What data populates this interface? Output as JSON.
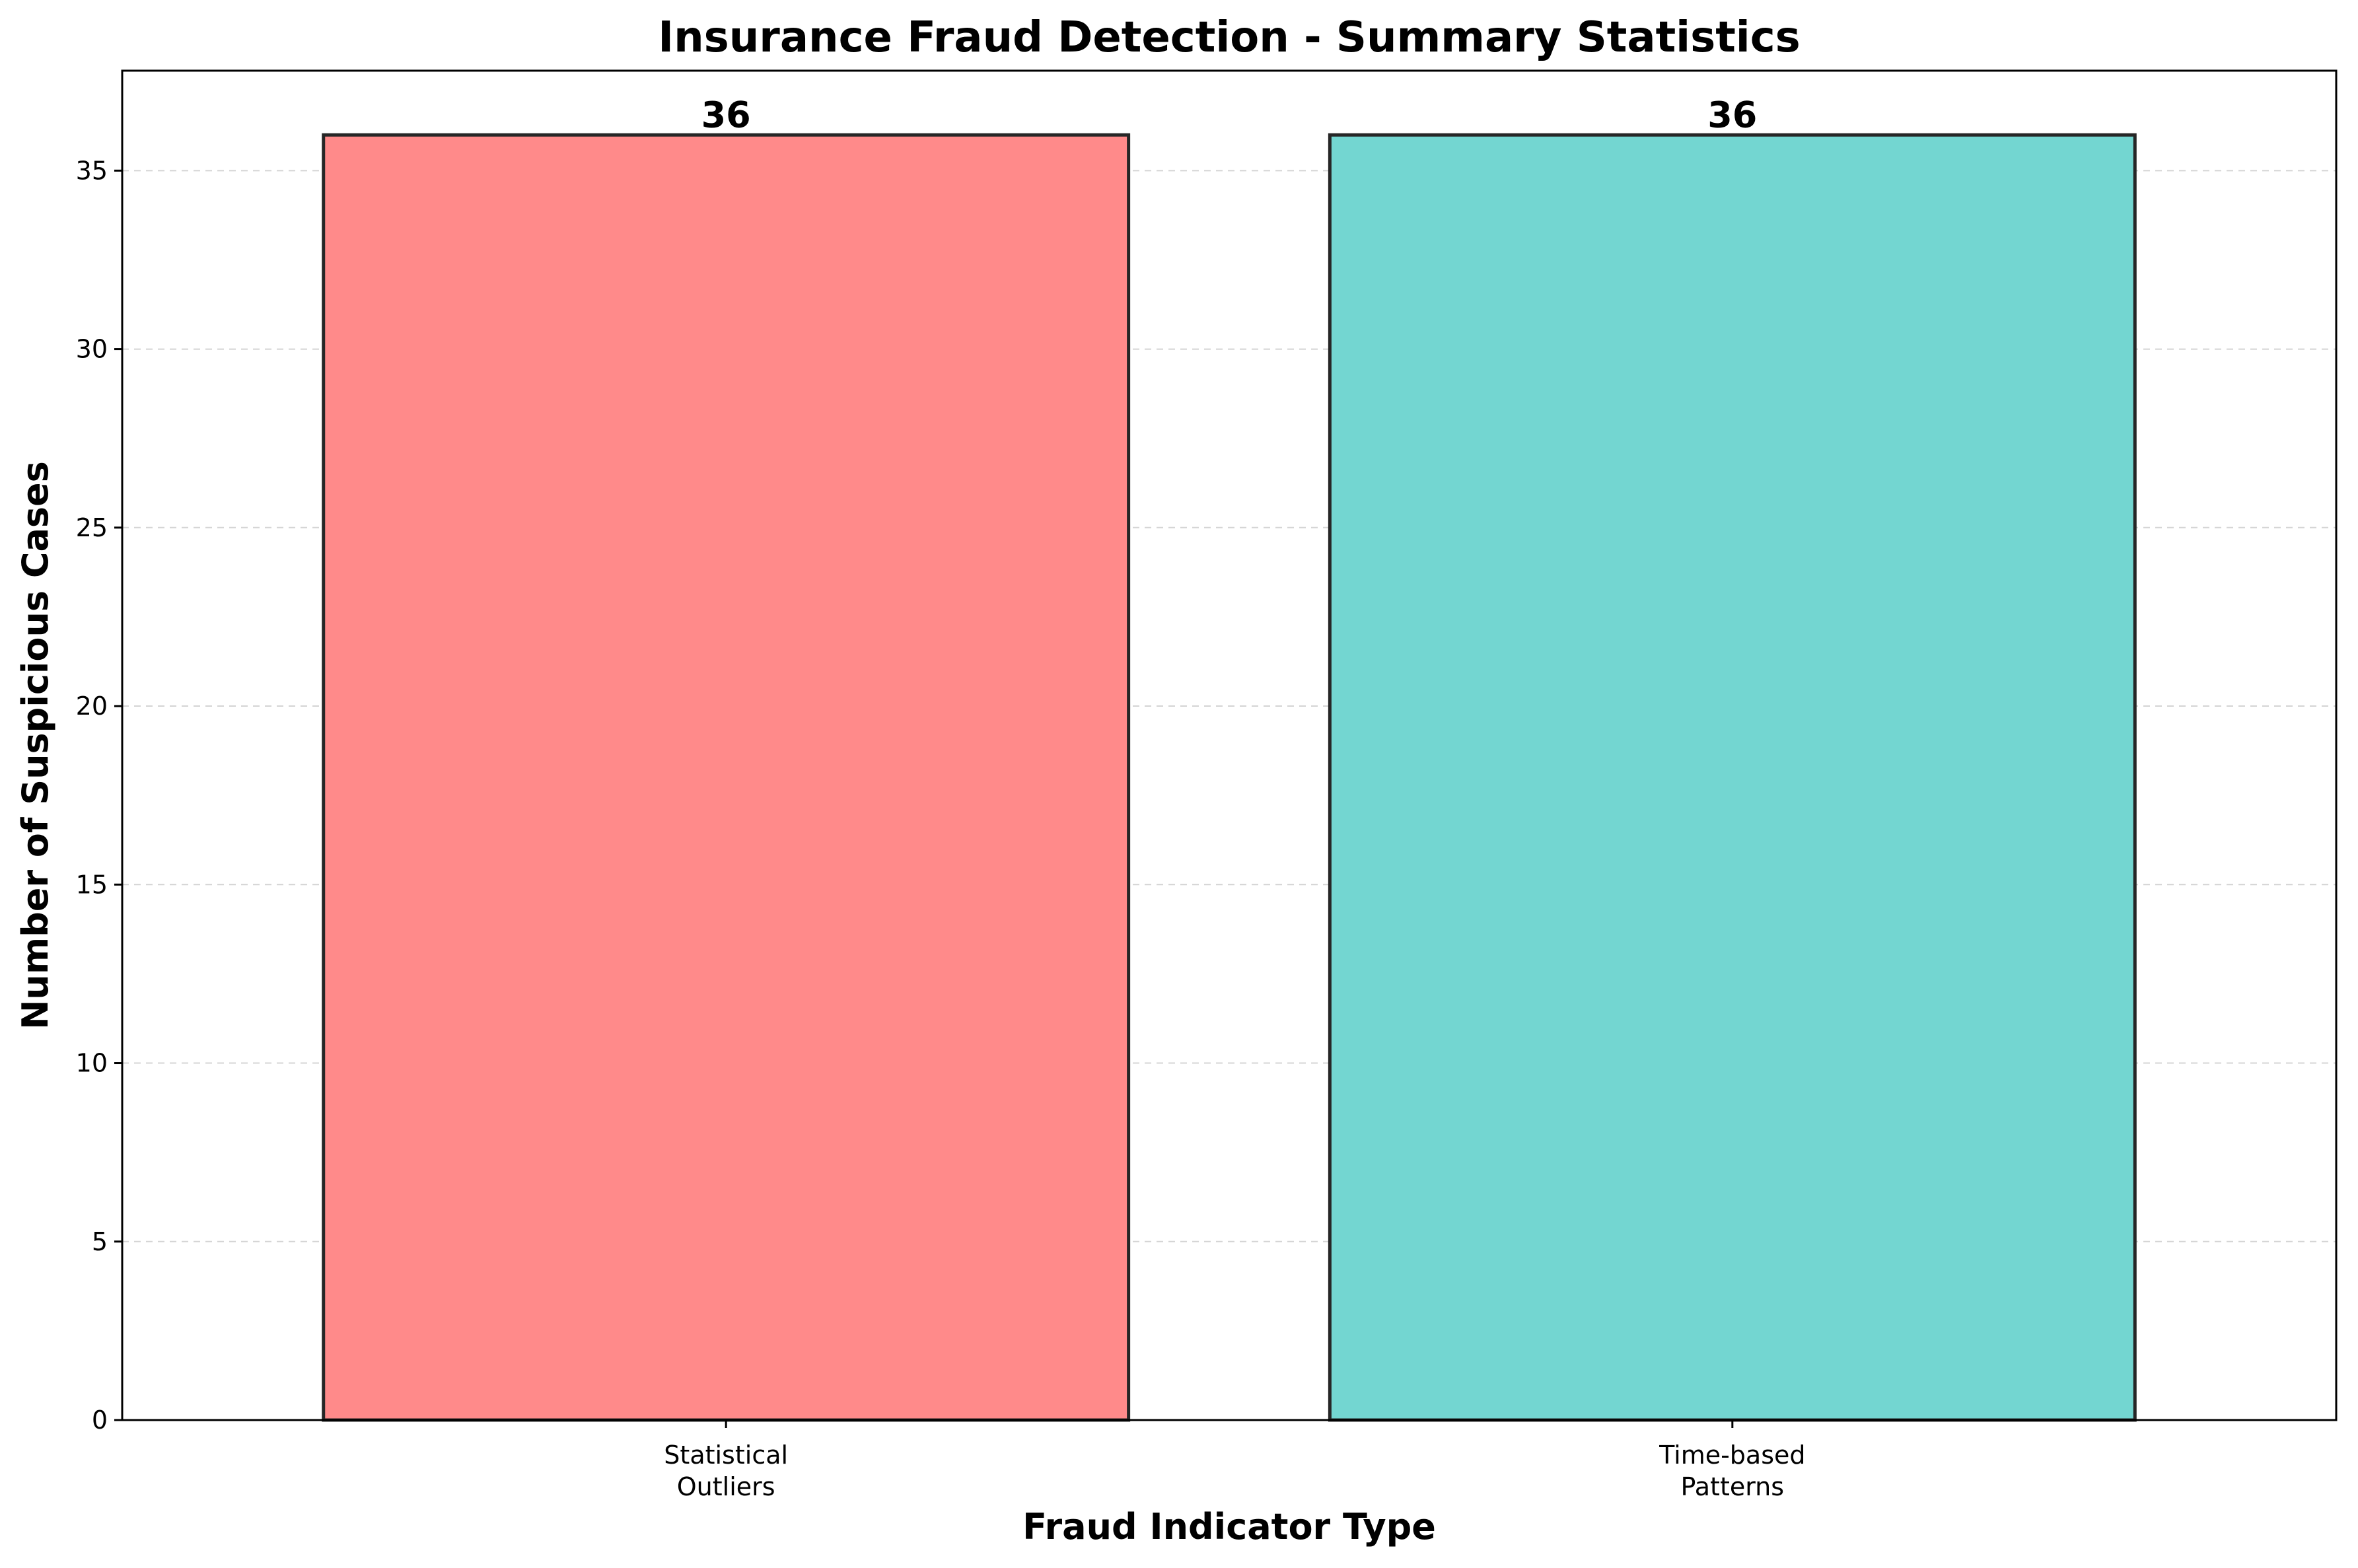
{
  "chart_data": {
    "type": "bar",
    "title": "Insurance Fraud Detection - Summary Statistics",
    "xlabel": "Fraud Indicator Type",
    "ylabel": "Number of Suspicious Cases",
    "categories": [
      [
        "Statistical",
        "Outliers"
      ],
      [
        "Time-based",
        "Patterns"
      ]
    ],
    "values": [
      36,
      36
    ],
    "data_labels": [
      "36",
      "36"
    ],
    "colors": [
      "#ff8a8a",
      "#73d6d1"
    ],
    "bar_edge_color": "#262626",
    "ylim": [
      0,
      37.8
    ],
    "yticks": [
      0,
      5,
      10,
      15,
      20,
      25,
      30,
      35
    ],
    "grid": "y, dashed",
    "legend": "none"
  }
}
